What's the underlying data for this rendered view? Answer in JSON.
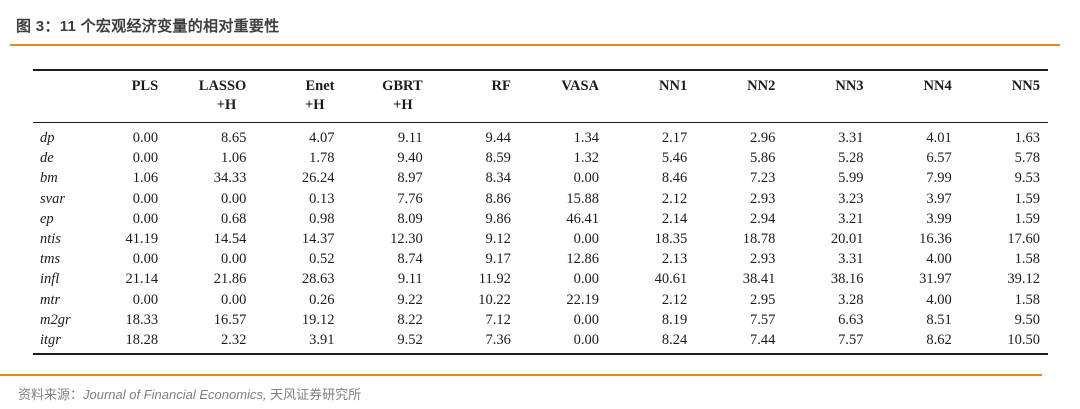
{
  "header": {
    "title": "图 3：11 个宏观经济变量的相对重要性"
  },
  "table": {
    "row_label_header": "",
    "columns": [
      {
        "label": "PLS",
        "sub": ""
      },
      {
        "label": "LASSO",
        "sub": "+H"
      },
      {
        "label": "Enet",
        "sub": "+H"
      },
      {
        "label": "GBRT",
        "sub": "+H"
      },
      {
        "label": "RF",
        "sub": ""
      },
      {
        "label": "VASA",
        "sub": ""
      },
      {
        "label": "NN1",
        "sub": ""
      },
      {
        "label": "NN2",
        "sub": ""
      },
      {
        "label": "NN3",
        "sub": ""
      },
      {
        "label": "NN4",
        "sub": ""
      },
      {
        "label": "NN5",
        "sub": ""
      }
    ],
    "rows": [
      {
        "label": "dp",
        "values": [
          "0.00",
          "8.65",
          "4.07",
          "9.11",
          "9.44",
          "1.34",
          "2.17",
          "2.96",
          "3.31",
          "4.01",
          "1.63"
        ]
      },
      {
        "label": "de",
        "values": [
          "0.00",
          "1.06",
          "1.78",
          "9.40",
          "8.59",
          "1.32",
          "5.46",
          "5.86",
          "5.28",
          "6.57",
          "5.78"
        ]
      },
      {
        "label": "bm",
        "values": [
          "1.06",
          "34.33",
          "26.24",
          "8.97",
          "8.34",
          "0.00",
          "8.46",
          "7.23",
          "5.99",
          "7.99",
          "9.53"
        ]
      },
      {
        "label": "svar",
        "values": [
          "0.00",
          "0.00",
          "0.13",
          "7.76",
          "8.86",
          "15.88",
          "2.12",
          "2.93",
          "3.23",
          "3.97",
          "1.59"
        ]
      },
      {
        "label": "ep",
        "values": [
          "0.00",
          "0.68",
          "0.98",
          "8.09",
          "9.86",
          "46.41",
          "2.14",
          "2.94",
          "3.21",
          "3.99",
          "1.59"
        ]
      },
      {
        "label": "ntis",
        "values": [
          "41.19",
          "14.54",
          "14.37",
          "12.30",
          "9.12",
          "0.00",
          "18.35",
          "18.78",
          "20.01",
          "16.36",
          "17.60"
        ]
      },
      {
        "label": "tms",
        "values": [
          "0.00",
          "0.00",
          "0.52",
          "8.74",
          "9.17",
          "12.86",
          "2.13",
          "2.93",
          "3.31",
          "4.00",
          "1.58"
        ]
      },
      {
        "label": "infl",
        "values": [
          "21.14",
          "21.86",
          "28.63",
          "9.11",
          "11.92",
          "0.00",
          "40.61",
          "38.41",
          "38.16",
          "31.97",
          "39.12"
        ]
      },
      {
        "label": "mtr",
        "values": [
          "0.00",
          "0.00",
          "0.26",
          "9.22",
          "10.22",
          "22.19",
          "2.12",
          "2.95",
          "3.28",
          "4.00",
          "1.58"
        ]
      },
      {
        "label": "m2gr",
        "values": [
          "18.33",
          "16.57",
          "19.12",
          "8.22",
          "7.12",
          "0.00",
          "8.19",
          "7.57",
          "6.63",
          "8.51",
          "9.50"
        ]
      },
      {
        "label": "itgr",
        "values": [
          "18.28",
          "2.32",
          "3.91",
          "9.52",
          "7.36",
          "0.00",
          "8.24",
          "7.44",
          "7.57",
          "8.62",
          "10.50"
        ]
      }
    ]
  },
  "footer": {
    "prefix": "资料来源：",
    "journal": "Journal of Financial Economics, ",
    "publisher": "天风证券研究所"
  },
  "colors": {
    "accent_orange": "#ef8326",
    "title_text": "#3e3e3e",
    "table_text": "#1c1c1c",
    "source_text": "#7f7f7f"
  }
}
